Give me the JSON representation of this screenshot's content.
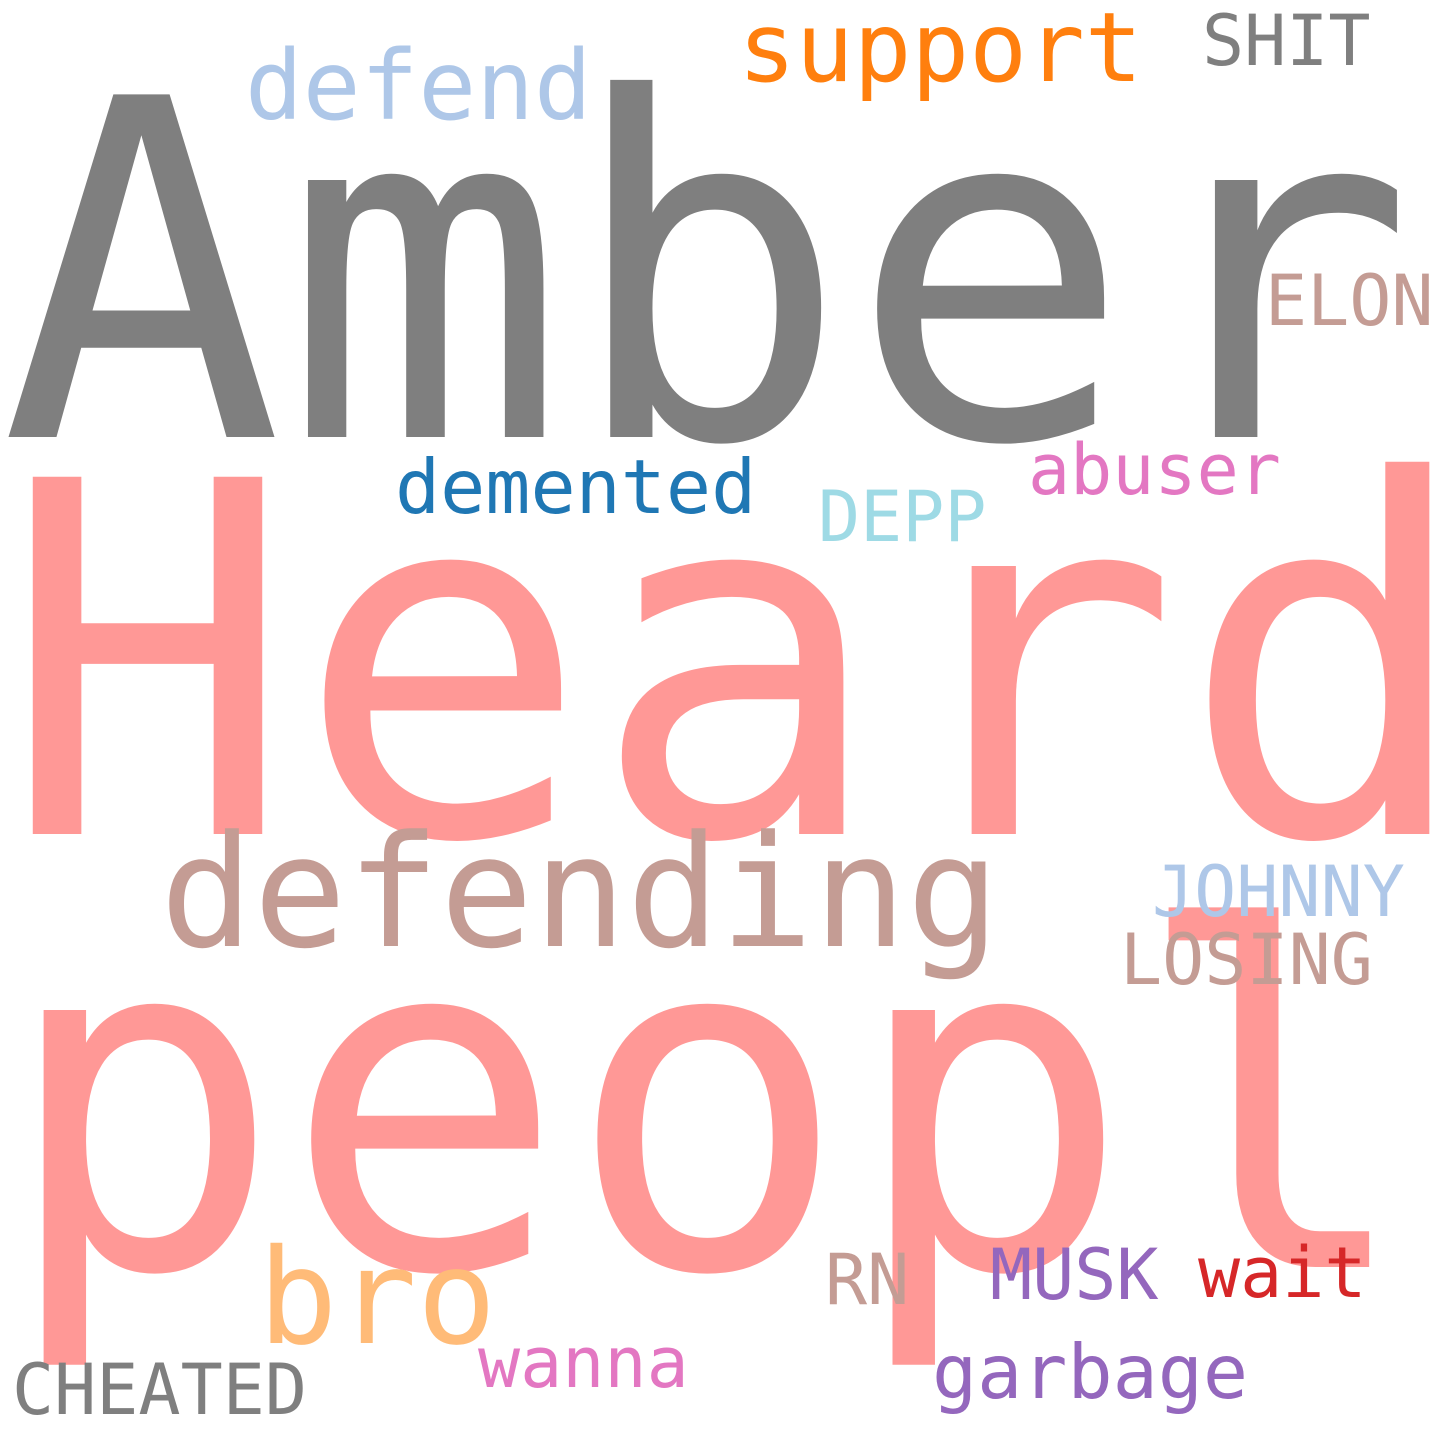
{
  "words": [
    {
      "key": "amber",
      "text": "Amber",
      "color": "#7f7f7f"
    },
    {
      "key": "heard",
      "text": "Heard",
      "color": "#ff9896"
    },
    {
      "key": "people",
      "text": "people",
      "color": "#ff9896"
    },
    {
      "key": "defending",
      "text": "defending",
      "color": "#c49c94"
    },
    {
      "key": "support",
      "text": "support",
      "color": "#ff7f0e"
    },
    {
      "key": "defend",
      "text": "defend",
      "color": "#aec7e8"
    },
    {
      "key": "shit",
      "text": "SHIT",
      "color": "#7f7f7f"
    },
    {
      "key": "elon",
      "text": "ELON",
      "color": "#c49c94"
    },
    {
      "key": "demented",
      "text": "demented",
      "color": "#1f77b4"
    },
    {
      "key": "abuser",
      "text": "abuser",
      "color": "#e377c2"
    },
    {
      "key": "depp",
      "text": "DEPP",
      "color": "#9edae5"
    },
    {
      "key": "johnny",
      "text": "JOHNNY",
      "color": "#aec7e8"
    },
    {
      "key": "losing",
      "text": "LOSING",
      "color": "#c49c94"
    },
    {
      "key": "bro",
      "text": "bro",
      "color": "#ffbb78"
    },
    {
      "key": "rn",
      "text": "RN",
      "color": "#c49c94"
    },
    {
      "key": "musk",
      "text": "MUSK",
      "color": "#9467bd"
    },
    {
      "key": "wait",
      "text": "wait",
      "color": "#d62728"
    },
    {
      "key": "wanna",
      "text": "wanna",
      "color": "#e377c2"
    },
    {
      "key": "garbage",
      "text": "garbage",
      "color": "#9467bd"
    },
    {
      "key": "cheated",
      "text": "CHEATED",
      "color": "#7f7f7f"
    }
  ]
}
